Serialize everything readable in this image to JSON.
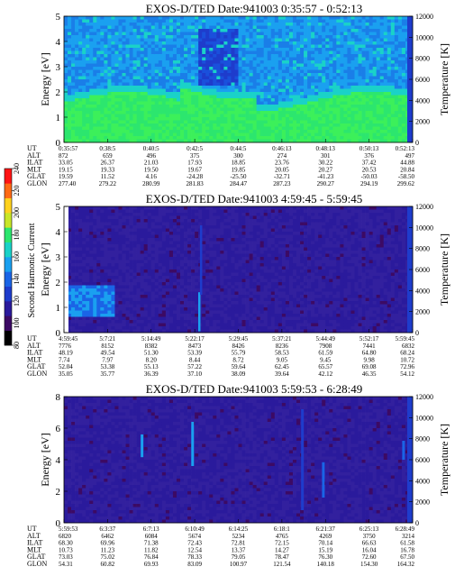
{
  "colorbar": {
    "label": "Second Harmonic Current",
    "ticks": [
      "80",
      "100",
      "120",
      "140",
      "160",
      "180",
      "200",
      "220",
      "240"
    ],
    "colors": [
      "#000000",
      "#3c0a64",
      "#2a1a9c",
      "#1e3ccc",
      "#1a64e6",
      "#1aa0f0",
      "#1ad2c8",
      "#2ce66e",
      "#c8e628",
      "#ffd21e",
      "#ff6a14",
      "#ff1414"
    ]
  },
  "chart_data": [
    {
      "type": "heatmap",
      "title": "EXOS-D/TED   Date:941003  0:35:57 - 0:52:13",
      "ylabel": "Energy [eV]",
      "y2label": "Temperature [K]",
      "ylim": [
        0,
        5
      ],
      "y2lim": [
        0,
        12000
      ],
      "yticks": [
        "0",
        "1",
        "2",
        "3",
        "4",
        "5"
      ],
      "y2ticks": [
        "0",
        "2000",
        "4000",
        "6000",
        "8000",
        "10000",
        "12000"
      ],
      "row_labels": [
        "UT",
        "ALT",
        "ILAT",
        "MLT",
        "GLAT",
        "GLON"
      ],
      "columns": [
        [
          "0:35:57",
          "872",
          "33.05",
          "19.15",
          "19.59",
          "277.40"
        ],
        [
          "0:38:5",
          "659",
          "26.37",
          "19.33",
          "11.52",
          "279.22"
        ],
        [
          "0:40:5",
          "496",
          "21.03",
          "19.50",
          "4.16",
          "280.99"
        ],
        [
          "0:42:5",
          "375",
          "17.93",
          "19.67",
          "-24.28",
          "281.83"
        ],
        [
          "0:44:5",
          "300",
          "18.85",
          "19.85",
          "-25.50",
          "284.47"
        ],
        [
          "0:46:13",
          "274",
          "23.76",
          "20.05",
          "-32.71",
          "287.23"
        ],
        [
          "0:48:13",
          "301",
          "30.22",
          "20.27",
          "-41.23",
          "290.27"
        ],
        [
          "0:50:13",
          "376",
          "37.42",
          "20.53",
          "-50.03",
          "294.19"
        ],
        [
          "0:52:13",
          "497",
          "44.88",
          "20.84",
          "-58.50",
          "299.62"
        ]
      ],
      "pattern": "green-cyan-blue"
    },
    {
      "type": "heatmap",
      "title": "EXOS-D/TED   Date:941003  4:59:45 - 5:59:45",
      "ylabel": "Energy [eV]",
      "y2label": "Temperature [K]",
      "ylim": [
        0,
        5
      ],
      "y2lim": [
        0,
        12000
      ],
      "yticks": [
        "0",
        "1",
        "2",
        "3",
        "4",
        "5"
      ],
      "y2ticks": [
        "0",
        "2000",
        "4000",
        "6000",
        "8000",
        "10000",
        "12000"
      ],
      "row_labels": [
        "UT",
        "ALT",
        "ILAT",
        "MLT",
        "GLAT",
        "GLON"
      ],
      "columns": [
        [
          "4:59:45",
          "7776",
          "48.19",
          "7.74",
          "52.04",
          "35.05"
        ],
        [
          "5:7:21",
          "8152",
          "49.54",
          "7.97",
          "53.38",
          "35.77"
        ],
        [
          "5:14:49",
          "8382",
          "51.30",
          "8.20",
          "55.13",
          "36.39"
        ],
        [
          "5:22:17",
          "8473",
          "53.39",
          "8.44",
          "57.22",
          "37.10"
        ],
        [
          "5:29:45",
          "8426",
          "55.79",
          "8.72",
          "59.64",
          "38.09"
        ],
        [
          "5:37:21",
          "8236",
          "58.53",
          "9.05",
          "62.45",
          "39.64"
        ],
        [
          "5:44:49",
          "7908",
          "61.59",
          "9.45",
          "65.57",
          "42.12"
        ],
        [
          "5:52:17",
          "7441",
          "64.80",
          "9.98",
          "69.08",
          "46.35"
        ],
        [
          "5:59:45",
          "6832",
          "68.24",
          "10.72",
          "72.96",
          "54.12"
        ]
      ],
      "pattern": "dark-blue"
    },
    {
      "type": "heatmap",
      "title": "EXOS-D/TED   Date:941003  5:59:53 - 6:28:49",
      "ylabel": "Energy [eV]",
      "y2label": "Temperature [K]",
      "ylim": [
        0,
        8
      ],
      "y2lim": [
        0,
        12000
      ],
      "yticks": [
        "0",
        "2",
        "4",
        "6",
        "8"
      ],
      "y2ticks": [
        "0",
        "2000",
        "4000",
        "6000",
        "8000",
        "10000",
        "12000"
      ],
      "row_labels": [
        "UT",
        "ALT",
        "ILAT",
        "MLT",
        "GLAT",
        "GLON"
      ],
      "columns": [
        [
          "5:59:53",
          "6820",
          "68.30",
          "10.73",
          "73.03",
          "54.31"
        ],
        [
          "6:3:37",
          "6462",
          "69.96",
          "11.23",
          "75.02",
          "60.82"
        ],
        [
          "6:7:13",
          "6084",
          "71.38",
          "11.82",
          "76.84",
          "69.93"
        ],
        [
          "6:10:49",
          "5674",
          "72.43",
          "12.54",
          "78.33",
          "83.09"
        ],
        [
          "6:14:25",
          "5234",
          "72.81",
          "13.37",
          "79.05",
          "100.97"
        ],
        [
          "6:18:1",
          "4765",
          "72.15",
          "14.27",
          "78.47",
          "121.54"
        ],
        [
          "6:21:37",
          "4269",
          "70.14",
          "15.19",
          "76.30",
          "140.18"
        ],
        [
          "6:25:13",
          "3750",
          "66.63",
          "16.04",
          "72.60",
          "154.30"
        ],
        [
          "6:28:49",
          "3214",
          "61.58",
          "16.78",
          "67.50",
          "164.32"
        ]
      ],
      "pattern": "dark-blue-streaks"
    }
  ]
}
